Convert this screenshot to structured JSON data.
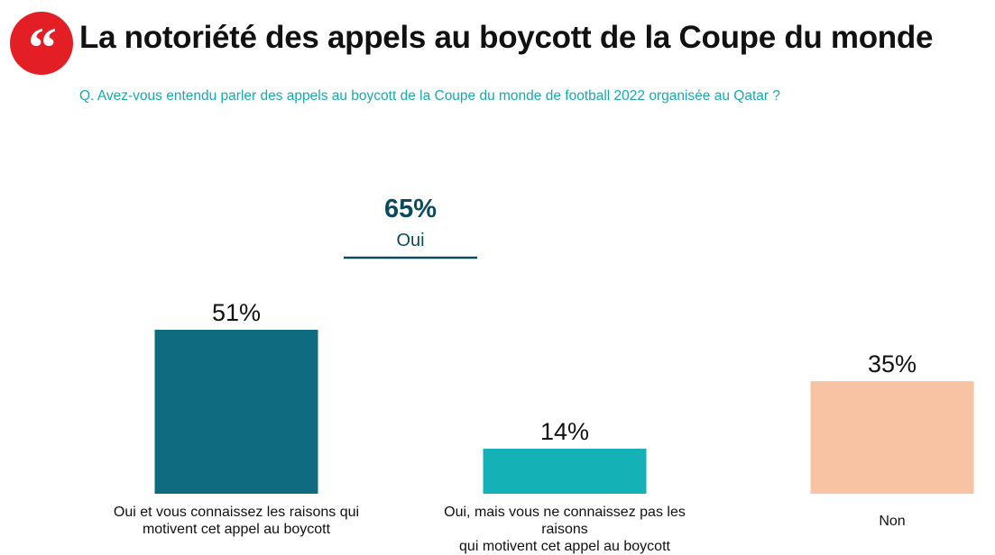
{
  "header": {
    "title": "La notoriété des appels au boycott de la Coupe du monde",
    "question": "Q. Avez-vous entendu parler des appels au boycott de la Coupe du monde de football 2022 organisée au Qatar ?"
  },
  "logo": {
    "icon": "quote-icon",
    "color": "#e31e24"
  },
  "colors": {
    "question": "#17a9b1",
    "summary": "#0d4a5c"
  },
  "chart_data": {
    "type": "bar",
    "title": "La notoriété des appels au boycott de la Coupe du monde",
    "categories": [
      "Oui et vous connaissez les raisons qui motivent cet appel au boycott",
      "Oui, mais vous ne connaissez pas les raisons qui motivent cet appel au boycott",
      "Non"
    ],
    "category_lines": [
      [
        "Oui et vous connaissez les raisons qui",
        "motivent cet appel au boycott"
      ],
      [
        "Oui, mais vous ne connaissez pas les raisons",
        "qui motivent cet appel au boycott"
      ],
      [
        "Non"
      ]
    ],
    "values": [
      51,
      14,
      35
    ],
    "labels": [
      "51%",
      "14%",
      "35%"
    ],
    "colors": [
      "#0e6b80",
      "#14b1b7",
      "#f7c3a3"
    ],
    "ylim": [
      0,
      51
    ],
    "summary": {
      "value": "65%",
      "label": "Oui",
      "applies_to": [
        0,
        1
      ]
    },
    "grid": false,
    "legend": "none"
  }
}
